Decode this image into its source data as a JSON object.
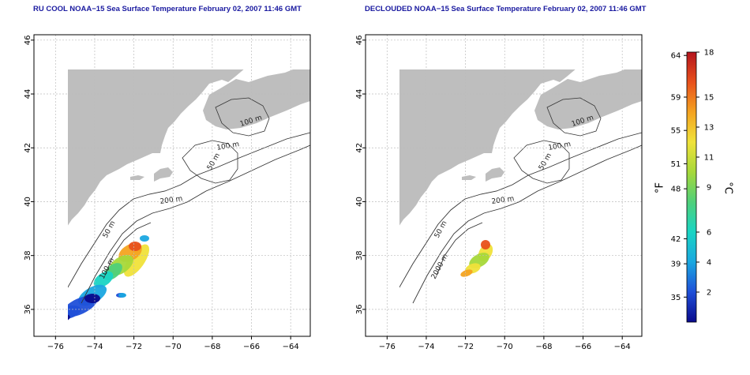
{
  "panels": [
    {
      "title": "RU COOL NOAA−15 Sea Surface Temperature February 02, 2007 11:46 GMT",
      "contours": [
        "100 m",
        "100 m",
        "50 m",
        "200 m",
        "50 m",
        "100 m"
      ]
    },
    {
      "title": "DECLOUDED NOAA−15 Sea Surface Temperature February 02, 2007 11:46 GMT",
      "contours": [
        "100 m",
        "100 m",
        "50 m",
        "200 m",
        "50 m",
        "2000 m"
      ]
    }
  ],
  "lon_ticks": [
    -76,
    -74,
    -72,
    -70,
    -68,
    -66,
    -64
  ],
  "lon_labels": [
    "−76",
    "−74",
    "−72",
    "−70",
    "−68",
    "−66",
    "−64"
  ],
  "lat_ticks": [
    36,
    38,
    40,
    42,
    44,
    46
  ],
  "lat_labels": [
    "36",
    "38",
    "40",
    "42",
    "44",
    "46"
  ],
  "lon_range": [
    -77.1,
    -63.0
  ],
  "lat_range": [
    35.0,
    46.2
  ],
  "colorbar": {
    "f_ticks": [
      "35",
      "39",
      "42",
      "48",
      "51",
      "55",
      "59",
      "64"
    ],
    "f_values": [
      35,
      39,
      42,
      48,
      51,
      55,
      59,
      64
    ],
    "c_ticks": [
      "2",
      "4",
      "6",
      "9",
      "11",
      "13",
      "15",
      "18"
    ],
    "c_values": [
      2,
      4,
      6,
      9,
      11,
      13,
      15,
      18
    ],
    "c_range": [
      0,
      18
    ],
    "f_label": "°F",
    "c_label": "°C",
    "colors": [
      "#0a0a8c",
      "#1f4fd8",
      "#1aa7e0",
      "#19d4c4",
      "#4fd07a",
      "#a6d83a",
      "#f0e23a",
      "#f4a320",
      "#e8501c",
      "#b4141e"
    ]
  },
  "colors": {
    "land": "#bebebe",
    "ocean": "#ffffff",
    "contour": "#333333",
    "grid": "#bcbcbc",
    "title": "#1a1aa0"
  }
}
